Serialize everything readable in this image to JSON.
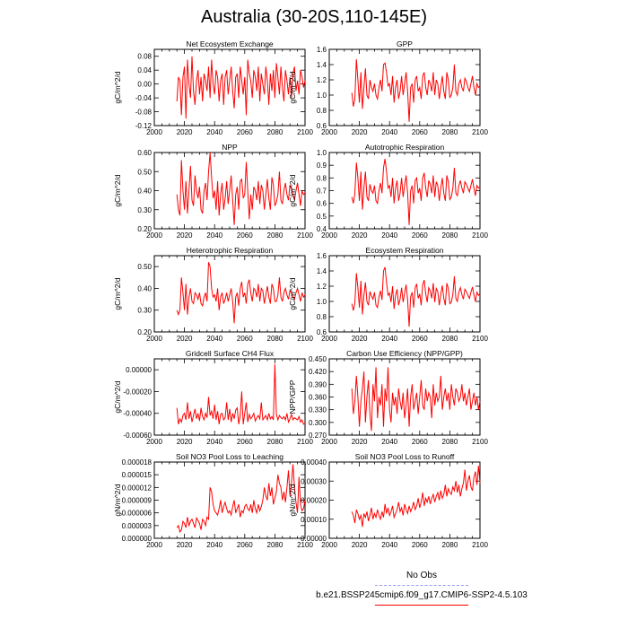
{
  "title": "Australia (30-20S,110-145E)",
  "colors": {
    "model": "#ff0000",
    "obs": "#9999ff",
    "axis": "#000000"
  },
  "legend": {
    "obs_label": "No Obs",
    "model_label": "b.e21.BSSP245cmip6.f09_g17.CMIP6-SSP2-4.5.103"
  },
  "chart_data": [
    {
      "type": "line",
      "title": "Net Ecosystem Exchange",
      "ylabel": "gC/m^2/d",
      "xlim": [
        2000,
        2100
      ],
      "ylim": [
        -0.12,
        0.1
      ],
      "xticks": [
        "2000",
        "2020",
        "2040",
        "2060",
        "2080",
        "2100"
      ],
      "yticks": [
        "-0.12",
        "-0.08",
        "-0.04",
        "0.00",
        "0.04",
        "0.08"
      ],
      "yticks_v": [
        -0.12,
        -0.08,
        -0.04,
        0.0,
        0.04,
        0.08
      ],
      "x_start": 2015,
      "x_step": 1,
      "values": [
        -0.05,
        0.02,
        0.01,
        -0.09,
        0.02,
        0.05,
        -0.1,
        0.07,
        0.0,
        -0.04,
        0.08,
        -0.02,
        -0.06,
        0.01,
        0.04,
        -0.03,
        0.02,
        -0.05,
        0.03,
        0.01,
        -0.02,
        0.05,
        -0.04,
        0.07,
        0.0,
        -0.03,
        0.04,
        0.02,
        -0.05,
        0.01,
        0.03,
        -0.06,
        0.02,
        0.04,
        -0.03,
        0.01,
        0.05,
        -0.02,
        -0.07,
        0.02,
        0.03,
        -0.04,
        0.05,
        0.01,
        -0.03,
        0.02,
        -0.09,
        0.07,
        0.03,
        0.01,
        -0.04,
        0.04,
        0.02,
        -0.02,
        0.05,
        -0.05,
        0.03,
        0.0,
        -0.03,
        0.05,
        0.01,
        -0.06,
        0.03,
        -0.02,
        0.04,
        -0.04,
        0.06,
        0.02,
        -0.03,
        0.05,
        -0.01,
        -0.05,
        0.04,
        0.01,
        -0.03,
        0.02,
        -0.04,
        0.03,
        0.05,
        -0.02,
        0.01,
        -0.03,
        0.04,
        0.02,
        -0.01,
        0.01
      ]
    },
    {
      "type": "line",
      "title": "GPP",
      "ylabel": "gC/m^2/d",
      "xlim": [
        2000,
        2100
      ],
      "ylim": [
        0.6,
        1.6
      ],
      "xticks": [
        "2000",
        "2020",
        "2040",
        "2060",
        "2080",
        "2100"
      ],
      "yticks": [
        "0.6",
        "0.8",
        "1.0",
        "1.2",
        "1.4",
        "1.6"
      ],
      "yticks_v": [
        0.6,
        0.8,
        1.0,
        1.2,
        1.4,
        1.6
      ],
      "x_start": 2015,
      "x_step": 1,
      "values": [
        1.03,
        0.85,
        0.95,
        1.47,
        1.2,
        0.9,
        1.3,
        0.82,
        1.1,
        1.35,
        1.0,
        0.95,
        1.2,
        1.1,
        1.05,
        1.15,
        1.0,
        0.95,
        1.1,
        1.2,
        1.05,
        1.4,
        1.42,
        1.3,
        1.12,
        1.15,
        1.0,
        1.25,
        0.9,
        1.1,
        1.2,
        0.95,
        1.05,
        1.25,
        1.0,
        1.15,
        1.3,
        1.05,
        0.65,
        1.1,
        1.15,
        0.9,
        1.2,
        1.25,
        1.05,
        1.1,
        0.95,
        1.25,
        1.3,
        1.1,
        1.0,
        1.2,
        1.15,
        1.05,
        1.3,
        1.0,
        1.2,
        1.15,
        0.95,
        1.1,
        1.25,
        1.05,
        0.95,
        1.3,
        1.2,
        0.97,
        1.0,
        1.1,
        1.4,
        1.05,
        1.0,
        1.15,
        1.2,
        1.1,
        1.05,
        1.22,
        1.18,
        1.1,
        1.05,
        1.15,
        1.25,
        1.1,
        1.0,
        1.15,
        1.1,
        1.12
      ]
    },
    {
      "type": "line",
      "title": "NPP",
      "ylabel": "gC/m^2/d",
      "xlim": [
        2000,
        2100
      ],
      "ylim": [
        0.2,
        0.6
      ],
      "xticks": [
        "2000",
        "2020",
        "2040",
        "2060",
        "2080",
        "2100"
      ],
      "yticks": [
        "0.20",
        "0.30",
        "0.40",
        "0.50",
        "0.60"
      ],
      "yticks_v": [
        0.2,
        0.3,
        0.4,
        0.5,
        0.6
      ],
      "x_start": 2015,
      "x_step": 1,
      "values": [
        0.38,
        0.3,
        0.27,
        0.56,
        0.4,
        0.3,
        0.45,
        0.28,
        0.4,
        0.53,
        0.35,
        0.32,
        0.48,
        0.4,
        0.36,
        0.42,
        0.3,
        0.28,
        0.4,
        0.44,
        0.35,
        0.5,
        0.6,
        0.47,
        0.36,
        0.4,
        0.3,
        0.45,
        0.27,
        0.38,
        0.44,
        0.3,
        0.36,
        0.45,
        0.33,
        0.4,
        0.48,
        0.35,
        0.22,
        0.38,
        0.42,
        0.3,
        0.45,
        0.46,
        0.36,
        0.38,
        0.55,
        0.4,
        0.25,
        0.38,
        0.3,
        0.42,
        0.4,
        0.35,
        0.45,
        0.33,
        0.43,
        0.4,
        0.3,
        0.38,
        0.46,
        0.36,
        0.3,
        0.47,
        0.43,
        0.32,
        0.34,
        0.38,
        0.5,
        0.35,
        0.33,
        0.4,
        0.44,
        0.38,
        0.35,
        0.43,
        0.41,
        0.38,
        0.35,
        0.4,
        0.44,
        0.38,
        0.32,
        0.4,
        0.38,
        0.39
      ]
    },
    {
      "type": "line",
      "title": "Autotrophic Respiration",
      "ylabel": "gC/m^2/d",
      "xlim": [
        2000,
        2100
      ],
      "ylim": [
        0.4,
        1.0
      ],
      "xticks": [
        "2000",
        "2020",
        "2040",
        "2060",
        "2080",
        "2100"
      ],
      "yticks": [
        "0.4",
        "0.5",
        "0.6",
        "0.7",
        "0.8",
        "0.9",
        "1.0"
      ],
      "yticks_v": [
        0.4,
        0.5,
        0.6,
        0.7,
        0.8,
        0.9,
        1.0
      ],
      "x_start": 2015,
      "x_step": 1,
      "values": [
        0.65,
        0.6,
        0.68,
        0.92,
        0.8,
        0.62,
        0.85,
        0.55,
        0.72,
        0.85,
        0.65,
        0.62,
        0.75,
        0.7,
        0.68,
        0.74,
        0.62,
        0.6,
        0.7,
        0.76,
        0.68,
        0.88,
        0.95,
        0.85,
        0.72,
        0.74,
        0.65,
        0.8,
        0.6,
        0.72,
        0.78,
        0.62,
        0.68,
        0.8,
        0.65,
        0.74,
        0.82,
        0.68,
        0.43,
        0.7,
        0.74,
        0.6,
        0.78,
        0.8,
        0.68,
        0.72,
        0.62,
        0.8,
        0.84,
        0.72,
        0.65,
        0.78,
        0.75,
        0.68,
        0.82,
        0.65,
        0.77,
        0.74,
        0.62,
        0.72,
        0.8,
        0.68,
        0.62,
        0.82,
        0.77,
        0.63,
        0.65,
        0.72,
        0.88,
        0.68,
        0.66,
        0.74,
        0.78,
        0.72,
        0.68,
        0.77,
        0.75,
        0.72,
        0.69,
        0.74,
        0.79,
        0.72,
        0.66,
        0.74,
        0.72,
        0.73
      ]
    },
    {
      "type": "line",
      "title": "Heterotrophic Respiration",
      "ylabel": "gC/m^2/d",
      "xlim": [
        2000,
        2100
      ],
      "ylim": [
        0.2,
        0.55
      ],
      "xticks": [
        "2000",
        "2020",
        "2040",
        "2060",
        "2080",
        "2100"
      ],
      "yticks": [
        "0.20",
        "0.30",
        "0.40",
        "0.50"
      ],
      "yticks_v": [
        0.2,
        0.3,
        0.4,
        0.5
      ],
      "x_start": 2015,
      "x_step": 1,
      "values": [
        0.3,
        0.28,
        0.3,
        0.45,
        0.38,
        0.3,
        0.42,
        0.28,
        0.36,
        0.4,
        0.34,
        0.33,
        0.38,
        0.37,
        0.35,
        0.38,
        0.33,
        0.32,
        0.36,
        0.38,
        0.34,
        0.52,
        0.5,
        0.4,
        0.36,
        0.37,
        0.34,
        0.4,
        0.3,
        0.36,
        0.38,
        0.33,
        0.35,
        0.38,
        0.34,
        0.37,
        0.4,
        0.34,
        0.24,
        0.36,
        0.38,
        0.32,
        0.4,
        0.43,
        0.36,
        0.38,
        0.33,
        0.42,
        0.44,
        0.38,
        0.34,
        0.4,
        0.39,
        0.36,
        0.42,
        0.34,
        0.4,
        0.39,
        0.33,
        0.37,
        0.41,
        0.36,
        0.33,
        0.42,
        0.4,
        0.34,
        0.34,
        0.37,
        0.45,
        0.36,
        0.34,
        0.38,
        0.4,
        0.37,
        0.35,
        0.39,
        0.38,
        0.36,
        0.35,
        0.38,
        0.4,
        0.37,
        0.34,
        0.38,
        0.36,
        0.37
      ]
    },
    {
      "type": "line",
      "title": "Ecosystem Respiration",
      "ylabel": "gC/m^2/d",
      "xlim": [
        2000,
        2100
      ],
      "ylim": [
        0.6,
        1.6
      ],
      "xticks": [
        "2000",
        "2020",
        "2040",
        "2060",
        "2080",
        "2100"
      ],
      "yticks": [
        "0.6",
        "0.8",
        "1.0",
        "1.2",
        "1.4",
        "1.6"
      ],
      "yticks_v": [
        0.6,
        0.8,
        1.0,
        1.2,
        1.4,
        1.6
      ],
      "x_start": 2015,
      "x_step": 1,
      "values": [
        0.97,
        0.88,
        0.98,
        1.37,
        1.18,
        0.92,
        1.27,
        0.83,
        1.08,
        1.25,
        1.0,
        0.95,
        1.13,
        1.07,
        1.03,
        1.12,
        0.95,
        0.92,
        1.06,
        1.14,
        1.02,
        1.4,
        1.45,
        1.25,
        1.08,
        1.11,
        0.99,
        1.2,
        0.9,
        1.08,
        1.16,
        0.95,
        1.03,
        1.18,
        0.99,
        1.11,
        1.22,
        1.02,
        0.67,
        1.06,
        1.12,
        0.92,
        1.18,
        1.23,
        1.04,
        1.1,
        0.95,
        1.22,
        1.28,
        1.1,
        0.99,
        1.18,
        1.14,
        1.04,
        1.24,
        0.99,
        1.17,
        1.13,
        0.95,
        1.09,
        1.21,
        1.04,
        0.95,
        1.24,
        1.17,
        0.97,
        0.99,
        1.09,
        1.33,
        1.04,
        1.0,
        1.12,
        1.18,
        1.09,
        1.03,
        1.16,
        1.13,
        1.08,
        1.04,
        1.12,
        1.19,
        1.09,
        1.0,
        1.12,
        1.08,
        1.1
      ]
    },
    {
      "type": "line",
      "title": "Gridcell Surface CH4 Flux",
      "ylabel": "gC/m^2/d",
      "xlim": [
        2000,
        2100
      ],
      "ylim": [
        -0.0006,
        0.0001
      ],
      "xticks": [
        "2000",
        "2020",
        "2040",
        "2060",
        "2080",
        "2100"
      ],
      "yticks": [
        "-0.00060",
        "-0.00040",
        "-0.00020",
        "0.00000"
      ],
      "yticks_v": [
        -0.0006,
        -0.0004,
        -0.0002,
        0.0
      ],
      "x_start": 2015,
      "x_step": 1,
      "values": [
        -0.00035,
        -0.0005,
        -0.00045,
        -0.00048,
        -0.00042,
        -0.0004,
        -0.00046,
        -0.0003,
        -0.00045,
        -0.00038,
        -0.00048,
        -0.00042,
        -0.00036,
        -0.00045,
        -0.0004,
        -0.00047,
        -0.00035,
        -0.00043,
        -0.00046,
        -0.0004,
        -0.00044,
        -0.00025,
        -0.00042,
        -0.00038,
        -0.00045,
        -0.00032,
        -0.00046,
        -0.00038,
        -0.0005,
        -0.00041,
        -0.0004,
        -0.00046,
        -0.00044,
        -0.0003,
        -0.00046,
        -0.00036,
        -0.00048,
        -0.0004,
        -0.00045,
        -0.00037,
        -0.00035,
        -0.0005,
        -0.00042,
        -0.0002,
        -0.0005,
        -0.0004,
        -0.0003,
        -0.00048,
        -0.00041,
        -0.00045,
        -0.00043,
        -0.0004,
        -0.00047,
        -0.00044,
        -0.00042,
        -0.00045,
        -0.0003,
        -0.00046,
        -0.00044,
        -0.00042,
        -0.00046,
        -0.0004,
        -0.00045,
        -0.00043,
        -0.00046,
        5e-05,
        -0.00041,
        -0.00046,
        -0.00042,
        -0.00044,
        -0.00045,
        -0.00043,
        -0.00046,
        -0.0004,
        -0.00048,
        -0.00045,
        -0.00041,
        -0.00046,
        -0.00044,
        -0.00045,
        -0.00046,
        -0.00043,
        -0.00048,
        -0.00046,
        -0.0005,
        -0.00049
      ]
    },
    {
      "type": "line",
      "title": "Carbon Use Efficiency (NPP/GPP)",
      "ylabel": "NPP/GPP",
      "xlim": [
        2000,
        2100
      ],
      "ylim": [
        0.27,
        0.45
      ],
      "xticks": [
        "2000",
        "2020",
        "2040",
        "2060",
        "2080",
        "2100"
      ],
      "yticks": [
        "0.270",
        "0.300",
        "0.330",
        "0.360",
        "0.390",
        "0.420",
        "0.450"
      ],
      "yticks_v": [
        0.27,
        0.3,
        0.33,
        0.36,
        0.39,
        0.42,
        0.45
      ],
      "x_start": 2015,
      "x_step": 1,
      "values": [
        0.38,
        0.32,
        0.35,
        0.41,
        0.36,
        0.29,
        0.35,
        0.38,
        0.42,
        0.3,
        0.36,
        0.4,
        0.32,
        0.28,
        0.39,
        0.35,
        0.43,
        0.31,
        0.36,
        0.34,
        0.39,
        0.29,
        0.38,
        0.35,
        0.43,
        0.33,
        0.3,
        0.37,
        0.34,
        0.36,
        0.32,
        0.38,
        0.35,
        0.33,
        0.37,
        0.31,
        0.34,
        0.38,
        0.29,
        0.36,
        0.39,
        0.33,
        0.35,
        0.37,
        0.32,
        0.36,
        0.4,
        0.34,
        0.33,
        0.38,
        0.35,
        0.37,
        0.36,
        0.31,
        0.39,
        0.34,
        0.37,
        0.35,
        0.36,
        0.41,
        0.33,
        0.36,
        0.38,
        0.35,
        0.37,
        0.33,
        0.39,
        0.36,
        0.34,
        0.38,
        0.37,
        0.35,
        0.36,
        0.39,
        0.35,
        0.37,
        0.34,
        0.36,
        0.38,
        0.33,
        0.35,
        0.37,
        0.34,
        0.36,
        0.33,
        0.35
      ]
    },
    {
      "type": "line",
      "title": "Soil NO3 Pool Loss to Leaching",
      "ylabel": "gN/m^2/d",
      "xlim": [
        2000,
        2100
      ],
      "ylim": [
        0.0,
        1.8e-05
      ],
      "xticks": [
        "2000",
        "2020",
        "2040",
        "2060",
        "2080",
        "2100"
      ],
      "yticks": [
        "0.000000",
        "0.000003",
        "0.000006",
        "0.000009",
        "0.000012",
        "0.000015",
        "0.000018"
      ],
      "yticks_v": [
        0.0,
        3e-06,
        6e-06,
        9e-06,
        1.2e-05,
        1.5e-05,
        1.8e-05
      ],
      "x_start": 2015,
      "x_step": 1,
      "values": [
        2.5e-06,
        3e-06,
        1.5e-06,
        2e-06,
        4e-06,
        3.5e-06,
        2.5e-06,
        5e-06,
        3e-06,
        4e-06,
        4.5e-06,
        3.5e-06,
        2.5e-06,
        4.8e-06,
        4.2e-06,
        3.5e-06,
        2e-06,
        4.5e-06,
        4e-06,
        3e-06,
        5e-06,
        4.5e-06,
        1.2e-05,
        1.1e-05,
        8e-06,
        6.5e-06,
        6e-06,
        5.5e-06,
        7e-06,
        9e-06,
        6e-06,
        7.5e-06,
        8.5e-06,
        7e-06,
        6e-06,
        6.5e-06,
        5.5e-06,
        7.5e-06,
        9e-06,
        6e-06,
        7e-06,
        8e-06,
        5e-06,
        6.5e-06,
        6e-06,
        7.5e-06,
        8e-06,
        7e-06,
        6.5e-06,
        8e-06,
        6e-06,
        9e-06,
        7e-06,
        6e-06,
        8e-06,
        6.5e-06,
        7.5e-06,
        9e-06,
        1.2e-05,
        1e-05,
        9e-06,
        1.3e-05,
        1e-05,
        1.2e-05,
        8e-06,
        9.5e-06,
        1.1e-05,
        1.5e-05,
        1.3e-05,
        1.2e-05,
        9e-06,
        1.1e-05,
        8.5e-06,
        1.2e-05,
        1.6e-05,
        1e-05,
        1.3e-05,
        1.75e-05,
        1.2e-05,
        8.5e-06,
        6e-06,
        1.45e-05,
        8e-06,
        6.5e-06,
        7e-06,
        9e-06
      ]
    },
    {
      "type": "line",
      "title": "Soil NO3 Pool Loss to Runoff",
      "ylabel": "gN/m^2/d",
      "xlim": [
        2000,
        2100
      ],
      "ylim": [
        0.0,
        0.0004
      ],
      "xticks": [
        "2000",
        "2020",
        "2040",
        "2060",
        "2080",
        "2100"
      ],
      "yticks": [
        "0.00000",
        "0.00010",
        "0.00020",
        "0.00030",
        "0.00040"
      ],
      "yticks_v": [
        0.0,
        0.0001,
        0.0002,
        0.0003,
        0.0004
      ],
      "x_start": 2015,
      "x_step": 1,
      "values": [
        0.00014,
        0.00012,
        8e-05,
        0.00015,
        0.00013,
        0.0001,
        0.00012,
        6e-05,
        0.00013,
        0.00011,
        0.00014,
        9e-05,
        0.00012,
        0.00016,
        0.0001,
        0.00013,
        0.00011,
        0.00015,
        0.00012,
        0.0001,
        0.00014,
        0.00011,
        0.00018,
        0.00013,
        0.00016,
        0.00012,
        0.00014,
        0.00017,
        0.00011,
        0.00013,
        0.00015,
        0.00019,
        0.00014,
        0.00016,
        0.00012,
        0.00018,
        0.00015,
        0.00013,
        0.00017,
        0.00014,
        0.00016,
        0.00019,
        0.00015,
        0.00017,
        0.00021,
        0.00016,
        0.00019,
        0.00024,
        0.00017,
        0.00021,
        0.00019,
        0.00022,
        0.00018,
        0.00021,
        0.00023,
        0.00019,
        0.00022,
        0.00024,
        0.0002,
        0.00025,
        0.00021,
        0.00023,
        0.00028,
        0.00022,
        0.00026,
        0.00024,
        0.00023,
        0.00027,
        0.00025,
        0.0003,
        0.00024,
        0.00028,
        0.00022,
        0.00026,
        0.00029,
        0.00036,
        0.00025,
        0.0003,
        0.00033,
        0.00027,
        0.00025,
        0.00032,
        0.00035,
        0.00028,
        0.00038,
        0.00029
      ]
    }
  ]
}
